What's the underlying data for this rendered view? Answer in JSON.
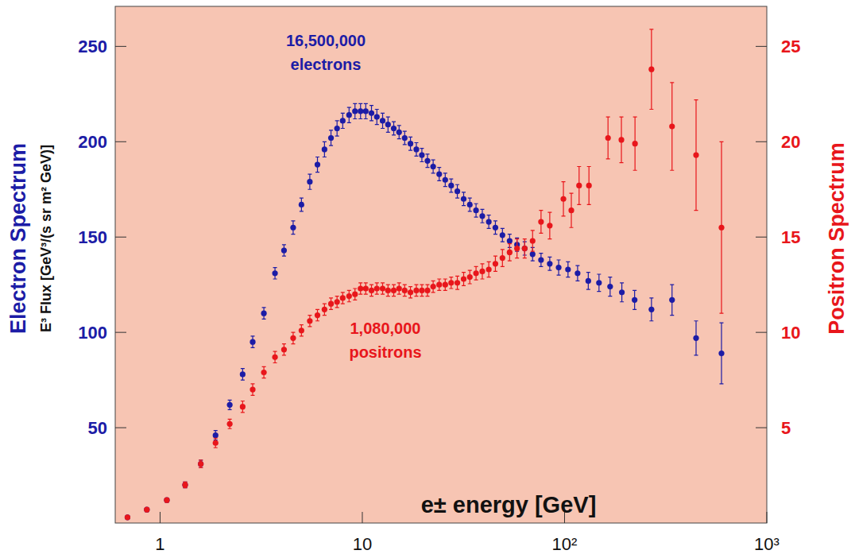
{
  "chart_data": {
    "type": "scatter",
    "log": "x",
    "xlabel": "e± energy [GeV]",
    "ylabel": "Electron Spectrum",
    "ylabel_units": "E³ Flux [GeV³/(s sr m² GeV)]",
    "y2label": "Positron Spectrum",
    "xlim": [
      0.6,
      1000
    ],
    "xticks": [
      1,
      10,
      {
        "value": 100,
        "label": "10²"
      },
      {
        "value": 1000,
        "label": "10³"
      }
    ],
    "ylim": [
      0,
      271
    ],
    "yticks": [
      50,
      100,
      150,
      200,
      250
    ],
    "y2lim": [
      0,
      27.1
    ],
    "y2ticks": [
      5,
      10,
      15,
      20,
      25
    ],
    "annotations": [
      "16,500,000",
      "1,080,000"
    ],
    "series": [
      {
        "name": "electrons",
        "color": "#1c1ca6",
        "marker": "circle",
        "x": [
          0.69,
          0.86,
          1.08,
          1.33,
          1.59,
          1.88,
          2.21,
          2.56,
          2.87,
          3.26,
          3.7,
          4.1,
          4.55,
          5,
          5.5,
          6,
          6.5,
          7,
          7.5,
          8,
          8.6,
          9.2,
          9.8,
          10.4,
          11.1,
          11.8,
          12.6,
          13.4,
          14.3,
          15.2,
          16.2,
          17.3,
          18.5,
          19.7,
          21,
          22.4,
          24,
          25.7,
          27.5,
          29.5,
          31.7,
          34,
          36.5,
          39.2,
          42.2,
          45.5,
          49.3,
          53.5,
          58.2,
          63.5,
          69.5,
          76.5,
          84.5,
          93.5,
          104,
          116,
          131,
          148,
          168,
          192,
          222,
          269,
          340,
          447,
          597
        ],
        "values": [
          3,
          7,
          12,
          20,
          31,
          46,
          62,
          78,
          95,
          110,
          131,
          143,
          155,
          167,
          179,
          188,
          196,
          202,
          207,
          211,
          214,
          216,
          216,
          216,
          215,
          213,
          211,
          209,
          207,
          205,
          202,
          199,
          196,
          193,
          190,
          187,
          183,
          180,
          177,
          174,
          170,
          167,
          164,
          161,
          158,
          155,
          151,
          148,
          146,
          144,
          141,
          138,
          136,
          134,
          133,
          131,
          127,
          126,
          124,
          121,
          117,
          112,
          117,
          97,
          89
        ],
        "errors": [
          0.5,
          0.7,
          1,
          1.5,
          2,
          2.5,
          2.5,
          3,
          3,
          3,
          3,
          3,
          3.5,
          3.5,
          4,
          4,
          4,
          4,
          4,
          4,
          4,
          4,
          4,
          4,
          4,
          4,
          4,
          4,
          3.5,
          3.5,
          3.5,
          3.5,
          3.5,
          3.5,
          3.5,
          3.5,
          3.5,
          3.5,
          3.5,
          3.5,
          3.5,
          3.5,
          3.5,
          3.5,
          3.5,
          3.5,
          3.5,
          3.5,
          3.5,
          3.5,
          3.5,
          3.5,
          3.5,
          4,
          4,
          4,
          4.5,
          4.5,
          5,
          5,
          5,
          6,
          8,
          9,
          16
        ]
      },
      {
        "name": "positrons",
        "color": "#e8161b",
        "marker": "circle",
        "axis": "y2",
        "x": [
          0.69,
          0.86,
          1.08,
          1.33,
          1.59,
          1.88,
          2.21,
          2.56,
          2.87,
          3.26,
          3.7,
          4.1,
          4.55,
          5,
          5.5,
          6,
          6.5,
          7,
          7.5,
          8,
          8.6,
          9.2,
          9.8,
          10.4,
          11.1,
          11.8,
          12.6,
          13.4,
          14.3,
          15.2,
          16.2,
          17.3,
          18.5,
          19.7,
          21,
          22.4,
          24,
          25.7,
          27.5,
          29.5,
          31.7,
          34,
          36.5,
          39.2,
          42.2,
          45.5,
          49.3,
          53.5,
          58.2,
          63.5,
          69.5,
          76.5,
          84.5,
          98.7,
          108,
          118,
          132,
          164,
          191,
          223,
          269,
          340,
          447,
          597
        ],
        "values": [
          0.3,
          0.7,
          1.2,
          2,
          3.1,
          4.2,
          5.2,
          6.1,
          7,
          7.9,
          8.7,
          9.1,
          9.7,
          10.1,
          10.6,
          10.9,
          11.2,
          11.5,
          11.6,
          11.8,
          11.9,
          12,
          12.3,
          12.3,
          12.2,
          12.3,
          12.3,
          12.2,
          12.2,
          12.3,
          12.2,
          12.1,
          12.2,
          12.2,
          12.2,
          12.4,
          12.5,
          12.5,
          12.6,
          12.6,
          12.8,
          12.9,
          13.1,
          13.2,
          13.3,
          13.6,
          13.9,
          14.2,
          14.4,
          14.4,
          14.8,
          15.8,
          15.6,
          17,
          16.4,
          17.7,
          17.7,
          20.2,
          20.1,
          19.9,
          23.8,
          20.8,
          19.3,
          15.5
        ],
        "errors": [
          0.05,
          0.08,
          0.1,
          0.15,
          0.2,
          0.25,
          0.25,
          0.3,
          0.3,
          0.3,
          0.3,
          0.3,
          0.3,
          0.3,
          0.3,
          0.3,
          0.3,
          0.3,
          0.3,
          0.3,
          0.3,
          0.3,
          0.3,
          0.3,
          0.3,
          0.3,
          0.3,
          0.3,
          0.3,
          0.3,
          0.3,
          0.3,
          0.3,
          0.3,
          0.3,
          0.3,
          0.3,
          0.3,
          0.3,
          0.35,
          0.35,
          0.35,
          0.35,
          0.4,
          0.4,
          0.4,
          0.45,
          0.45,
          0.5,
          0.5,
          0.55,
          0.6,
          0.7,
          0.9,
          0.9,
          1,
          1,
          1.1,
          1.2,
          1.4,
          2.1,
          2.3,
          2.9,
          4.5
        ]
      }
    ]
  }
}
